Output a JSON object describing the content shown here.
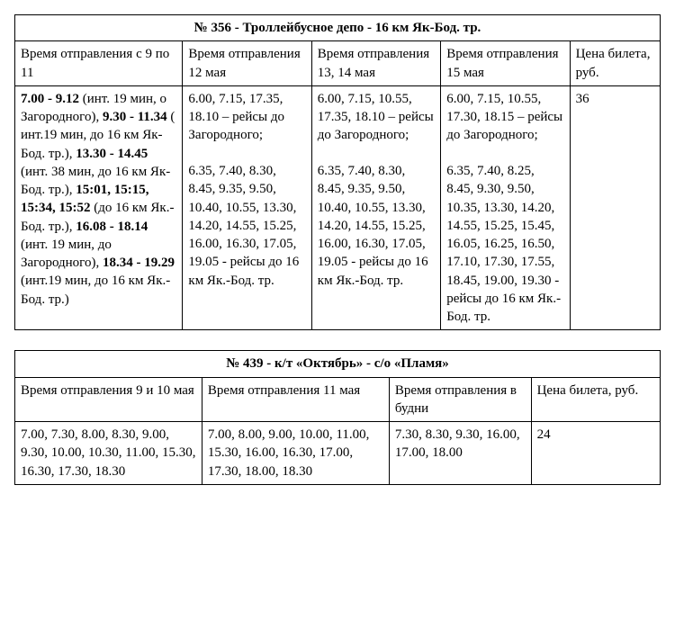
{
  "table1": {
    "title": "№ 356 - Троллейбусное депо - 16 км Як-Бод. тр.",
    "col_widths": [
      "26%",
      "20%",
      "20%",
      "20%",
      "14%"
    ],
    "headers": [
      "Время отправления с 9 по 11",
      "Время отправления 12 мая",
      "Время отправления 13, 14  мая",
      "Время отправления 15 мая",
      "Цена билета, руб."
    ],
    "cell_c1_parts": [
      {
        "b": true,
        "t": "7.00 - 9.12 "
      },
      {
        "b": false,
        "t": " (инт. 19 мин, о Загородного), "
      },
      {
        "b": true,
        "t": "9.30 - 11.34"
      },
      {
        "b": false,
        "t": " (  инт.19 мин, до 16 км Як-Бод. тр.), "
      },
      {
        "b": true,
        "t": "13.30 - 14.45"
      },
      {
        "b": false,
        "t": " (инт. 38 мин, до 16 км Як-Бод. тр.), "
      },
      {
        "b": true,
        "t": "15:01, 15:15, 15:34, 15:52"
      },
      {
        "b": false,
        "t": " (до 16 км Як.-Бод. тр.), "
      },
      {
        "b": true,
        "t": "16.08 - 18.14"
      },
      {
        "b": false,
        "t": " (инт. 19 мин, до Загородного), "
      },
      {
        "b": true,
        "t": "18.34 - 19.29"
      },
      {
        "b": false,
        "t": " (инт.19 мин, до 16 км Як.-Бод. тр.)"
      }
    ],
    "cell_c2_p1": "6.00,  7.15, 17.35,  18.10 – рейсы до Загородного;",
    "cell_c2_p2": "6.35, 7.40, 8.30, 8.45,  9.35, 9.50, 10.40, 10.55, 13.30, 14.20,  14.55, 15.25, 16.00, 16.30, 17.05, 19.05 -  рейсы до 16 км Як.-Бод. тр.",
    "cell_c3_p1": "6.00,  7.15, 10.55,  17.35, 18.10 – рейсы до Загородного;",
    "cell_c3_p2": "6.35, 7.40, 8.30, 8.45,  9.35, 9.50, 10.40, 10.55, 13.30, 14.20,  14.55, 15.25, 16.00, 16.30, 17.05, 19.05 - рейсы до 16 км Як.-Бод. тр.",
    "cell_c4_p1": "6.00,  7.15, 10.55,  17.30, 18.15 – рейсы до Загородного;",
    "cell_c4_p2": "6.35, 7.40, 8.25, 8.45,  9.30, 9.50, 10.35, 13.30, 14.20, 14.55,  15.25, 15.45, 16.05, 16.25, 16.50, 17.10,  17.30, 17.55, 18.45, 19.00, 19.30  - рейсы до 16 км Як.-Бод. тр.",
    "cell_c5": "36"
  },
  "table2": {
    "title": "№ 439 - к/т «Октябрь» - с/о «Пламя»",
    "col_widths": [
      "29%",
      "29%",
      "22%",
      "20%"
    ],
    "headers": [
      "Время отправления  9 и 10 мая",
      "Время отправления 11 мая",
      "Время отправления в будни",
      "Цена билета, руб."
    ],
    "row": [
      "7.00, 7.30, 8.00, 8.30, 9.00, 9.30, 10.00, 10.30, 11.00, 15.30, 16.30, 17.30, 18.30",
      "7.00,  8.00,  9.00, 10.00, 11.00, 15.30, 16.00, 16.30, 17.00, 17.30, 18.00, 18.30",
      "7.30, 8.30, 9.30, 16.00, 17.00, 18.00",
      "24"
    ]
  }
}
